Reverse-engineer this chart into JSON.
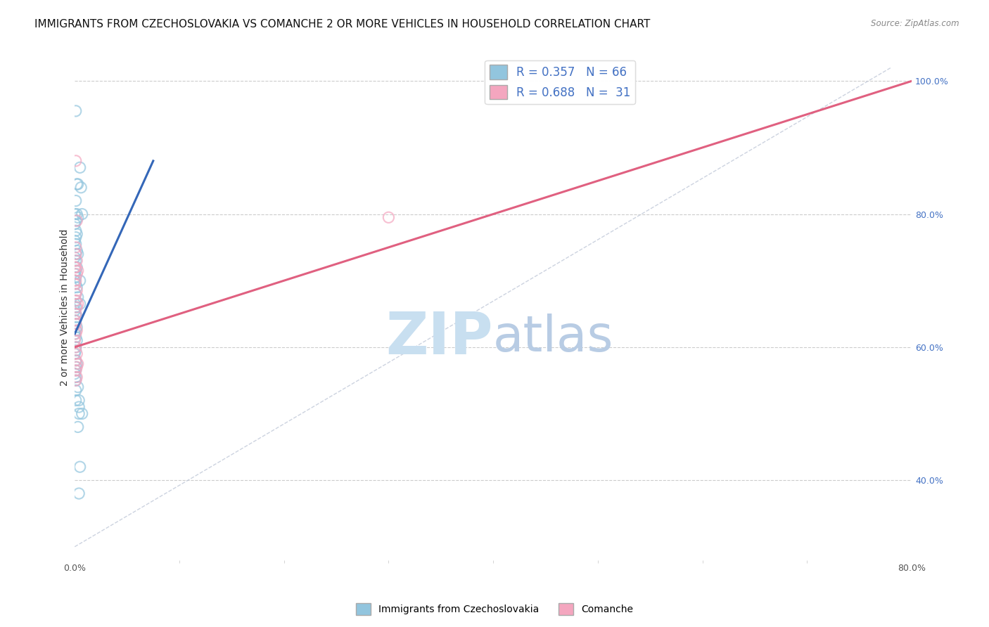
{
  "title": "IMMIGRANTS FROM CZECHOSLOVAKIA VS COMANCHE 2 OR MORE VEHICLES IN HOUSEHOLD CORRELATION CHART",
  "source_text": "Source: ZipAtlas.com",
  "ylabel": "2 or more Vehicles in Household",
  "xlim": [
    0.0,
    0.8
  ],
  "ylim": [
    0.28,
    1.04
  ],
  "y_ticks_right": [
    0.4,
    0.6,
    0.8,
    1.0
  ],
  "y_tick_labels_right": [
    "40.0%",
    "60.0%",
    "80.0%",
    "100.0%"
  ],
  "legend_blue_label": "R = 0.357   N = 66",
  "legend_pink_label": "R = 0.688   N =  31",
  "legend_labels_bottom": [
    "Immigrants from Czechoslovakia",
    "Comanche"
  ],
  "watermark": "ZIPatlas",
  "blue_color": "#92c5de",
  "pink_color": "#f4a6bf",
  "blue_line_color": "#3467b8",
  "pink_line_color": "#e06080",
  "blue_scatter_x": [
    0.001,
    0.005,
    0.002,
    0.003,
    0.001,
    0.002,
    0.0,
    0.003,
    0.001,
    0.0,
    0.001,
    0.002,
    0.001,
    0.0,
    0.001,
    0.002,
    0.003,
    0.001,
    0.0,
    0.001,
    0.002,
    0.001,
    0.0,
    0.001,
    0.0,
    0.001,
    0.002,
    0.001,
    0.003,
    0.001,
    0.0,
    0.001,
    0.0,
    0.001,
    0.002,
    0.001,
    0.001,
    0.002,
    0.001,
    0.0,
    0.001,
    0.002,
    0.001,
    0.001,
    0.0,
    0.001,
    0.002,
    0.001,
    0.001,
    0.0,
    0.001,
    0.001,
    0.003,
    0.001,
    0.001,
    0.004,
    0.004,
    0.006,
    0.007,
    0.005,
    0.005,
    0.004,
    0.007,
    0.003,
    0.005,
    0.004
  ],
  "blue_scatter_y": [
    0.955,
    0.87,
    0.845,
    0.845,
    0.82,
    0.8,
    0.8,
    0.795,
    0.79,
    0.785,
    0.775,
    0.77,
    0.765,
    0.76,
    0.755,
    0.745,
    0.74,
    0.74,
    0.735,
    0.73,
    0.72,
    0.715,
    0.71,
    0.705,
    0.7,
    0.695,
    0.69,
    0.68,
    0.675,
    0.67,
    0.665,
    0.66,
    0.655,
    0.65,
    0.645,
    0.64,
    0.635,
    0.63,
    0.625,
    0.62,
    0.615,
    0.61,
    0.6,
    0.595,
    0.59,
    0.58,
    0.575,
    0.57,
    0.565,
    0.56,
    0.555,
    0.55,
    0.54,
    0.535,
    0.52,
    0.51,
    0.5,
    0.84,
    0.8,
    0.7,
    0.665,
    0.52,
    0.5,
    0.48,
    0.42,
    0.38
  ],
  "pink_scatter_x": [
    0.001,
    0.002,
    0.001,
    0.0,
    0.001,
    0.002,
    0.001,
    0.003,
    0.002,
    0.001,
    0.0,
    0.002,
    0.001,
    0.001,
    0.003,
    0.002,
    0.001,
    0.0,
    0.001,
    0.002,
    0.001,
    0.0,
    0.001,
    0.002,
    0.001,
    0.003,
    0.002,
    0.001,
    0.3,
    0.002,
    0.001
  ],
  "pink_scatter_y": [
    0.88,
    0.79,
    0.75,
    0.72,
    0.74,
    0.73,
    0.72,
    0.715,
    0.71,
    0.7,
    0.695,
    0.685,
    0.68,
    0.67,
    0.665,
    0.66,
    0.65,
    0.64,
    0.635,
    0.625,
    0.62,
    0.61,
    0.6,
    0.59,
    0.58,
    0.575,
    0.57,
    0.565,
    0.795,
    0.555,
    0.55
  ],
  "blue_line_x": [
    0.0,
    0.075
  ],
  "blue_line_y": [
    0.62,
    0.88
  ],
  "pink_line_x": [
    0.0,
    0.8
  ],
  "pink_line_y": [
    0.6,
    1.0
  ],
  "diagonal_line_x": [
    0.0,
    0.78
  ],
  "diagonal_line_y": [
    0.3,
    1.02
  ],
  "title_fontsize": 11,
  "axis_label_fontsize": 10,
  "tick_fontsize": 9,
  "watermark_fontsize": 60,
  "watermark_color": "#d8e8f5",
  "background_color": "#ffffff",
  "grid_color": "#cccccc"
}
